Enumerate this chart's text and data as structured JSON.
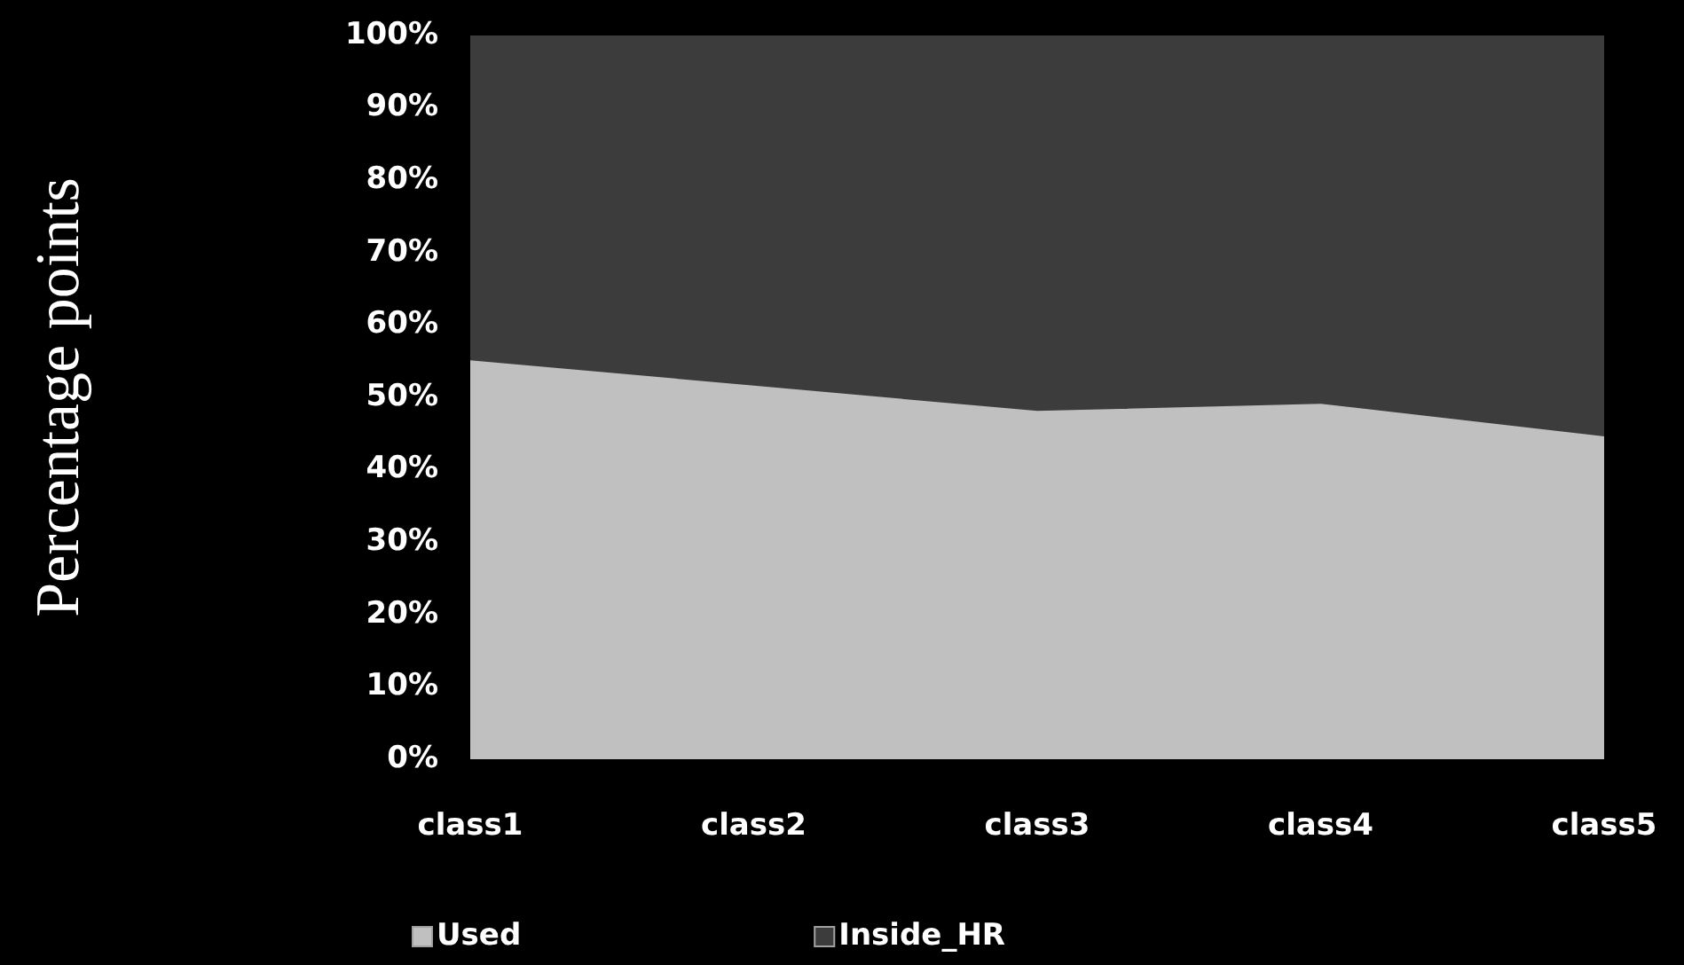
{
  "chart_data": {
    "type": "area",
    "ylabel": "Percentage points",
    "categories": [
      "class1",
      "class2",
      "class3",
      "class4",
      "class5"
    ],
    "stacked": true,
    "series": [
      {
        "name": "Used",
        "color": "#c0c0c0",
        "values": [
          55,
          51.5,
          48,
          49,
          44.5
        ]
      },
      {
        "name": "Inside_HR",
        "color": "#3c3c3c",
        "values": [
          45,
          48.5,
          52,
          51,
          55.5
        ]
      }
    ],
    "ylim": [
      0,
      100
    ],
    "yticks": [
      {
        "value": 0,
        "label": "0%"
      },
      {
        "value": 10,
        "label": "10%"
      },
      {
        "value": 20,
        "label": "20%"
      },
      {
        "value": 30,
        "label": "30%"
      },
      {
        "value": 40,
        "label": "40%"
      },
      {
        "value": 50,
        "label": "50%"
      },
      {
        "value": 60,
        "label": "60%"
      },
      {
        "value": 70,
        "label": "70%"
      },
      {
        "value": 80,
        "label": "80%"
      },
      {
        "value": 90,
        "label": "90%"
      },
      {
        "value": 100,
        "label": "100%"
      }
    ],
    "legend": "bottom",
    "grid": false
  }
}
